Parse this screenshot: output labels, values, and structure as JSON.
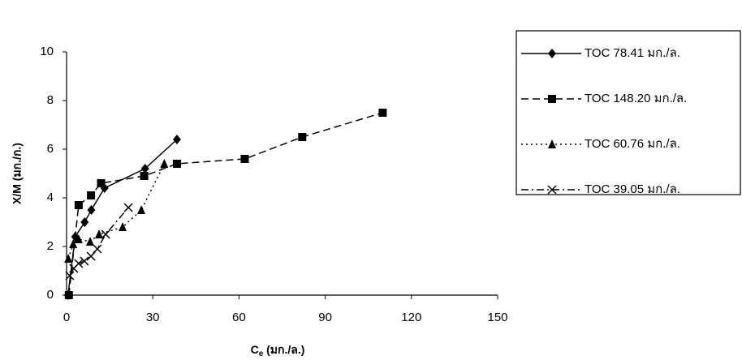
{
  "chart_data": {
    "type": "line",
    "xlabel": {
      "main": "C",
      "sub": "e",
      "rest": " (มก./ล.)"
    },
    "ylabel": "X/M (มก./ก.)",
    "xlim": [
      0,
      150
    ],
    "xticks": [
      0,
      30,
      60,
      90,
      120,
      150
    ],
    "ylim": [
      0,
      10
    ],
    "yticks": [
      0,
      2,
      4,
      6,
      8,
      10
    ],
    "legend": "right",
    "series": [
      {
        "name": "TOC 78.41 มก./ล.",
        "color": "#000000",
        "marker": "diamond",
        "dash": "solid",
        "x": [
          0.5,
          3,
          6.3,
          8.6,
          13.2,
          27.3,
          38.4
        ],
        "values": [
          0,
          2.4,
          3.0,
          3.5,
          4.4,
          5.2,
          6.4
        ]
      },
      {
        "name": "TOC 148.20 มก./ล.",
        "color": "#000000",
        "marker": "square",
        "dash": "dashed",
        "x": [
          0.8,
          4.2,
          8.5,
          12,
          27,
          38.4,
          62,
          82,
          110
        ],
        "values": [
          0,
          3.7,
          4.1,
          4.6,
          4.9,
          5.4,
          5.6,
          6.5,
          7.5
        ]
      },
      {
        "name": "TOC 60.76 มก./ล.",
        "color": "#000000",
        "marker": "triangle",
        "dash": "dotted",
        "x": [
          0.6,
          2.3,
          4.2,
          8.2,
          11.3,
          19.5,
          26,
          34
        ],
        "values": [
          1.5,
          2.1,
          2.3,
          2.2,
          2.5,
          2.8,
          3.5,
          5.4
        ]
      },
      {
        "name": "TOC 39.05 มก./ล.",
        "color": "#000000",
        "marker": "x",
        "dash": "dashdot",
        "x": [
          1.1,
          2.5,
          4.2,
          6.2,
          8.5,
          10.7,
          13.6,
          21.5
        ],
        "values": [
          0.8,
          1.1,
          1.3,
          1.4,
          1.6,
          1.9,
          2.5,
          3.6
        ]
      }
    ]
  }
}
